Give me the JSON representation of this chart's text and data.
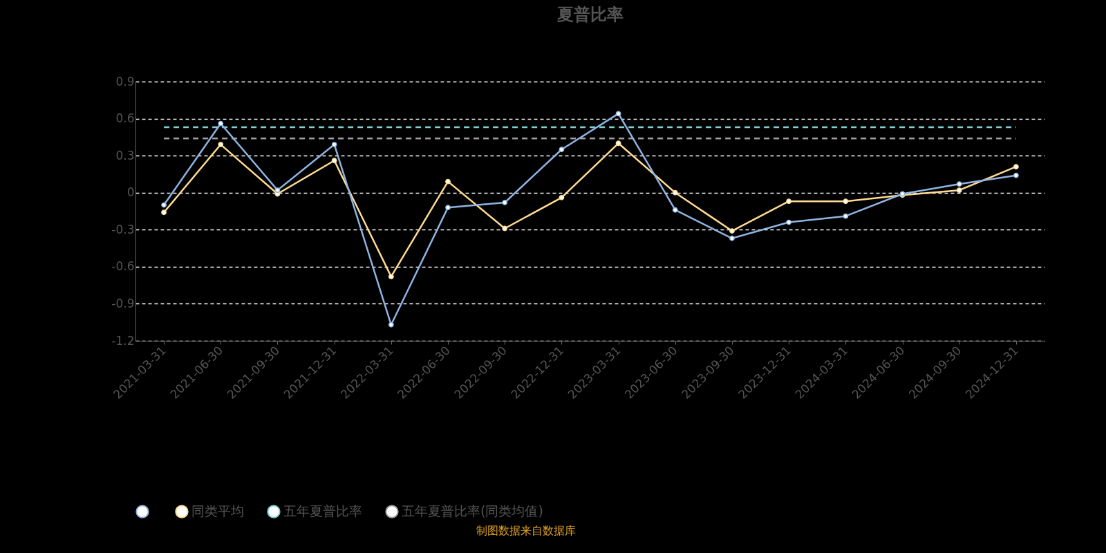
{
  "chart_data": {
    "type": "line",
    "title": "夏普比率",
    "categories": [
      "2021-03-31",
      "2021-06-30",
      "2021-09-30",
      "2021-12-31",
      "2022-03-31",
      "2022-06-30",
      "2022-09-30",
      "2022-12-31",
      "2023-03-31",
      "2023-06-30",
      "2023-09-30",
      "2023-12-31",
      "2024-03-31",
      "2024-06-30",
      "2024-09-30",
      "2024-12-31"
    ],
    "series": [
      {
        "color": "#8eb4e3",
        "values": [
          -0.1,
          0.56,
          0.02,
          0.39,
          -1.07,
          -0.12,
          -0.08,
          0.35,
          0.64,
          -0.14,
          -0.37,
          -0.24,
          -0.19,
          -0.01,
          0.07,
          0.14
        ]
      },
      {
        "name": "同类平均",
        "color": "#ffdb92",
        "values": [
          -0.16,
          0.39,
          -0.01,
          0.26,
          -0.68,
          0.09,
          -0.29,
          -0.04,
          0.4,
          0,
          -0.31,
          -0.07,
          -0.07,
          -0.02,
          0.02,
          0.21
        ]
      },
      {
        "name": "五年夏普比率",
        "color": "#7fd0d0",
        "marker": "none",
        "line_style": "dashed",
        "values": [
          0.53,
          0.53,
          0.53,
          0.53,
          0.53,
          0.53,
          0.53,
          0.53,
          0.53,
          0.53,
          0.53,
          0.53,
          0.53,
          0.53,
          0.53,
          0.53
        ]
      },
      {
        "name": "五年夏普比率(同类均值)",
        "color": "#a0a0a0",
        "marker": "none",
        "line_style": "dashed",
        "values": [
          0.44,
          0.44,
          0.44,
          0.44,
          0.44,
          0.44,
          0.44,
          0.44,
          0.44,
          0.44,
          0.44,
          0.44,
          0.44,
          0.44,
          0.44,
          0.44
        ]
      }
    ],
    "ylim": [
      -1.2,
      0.9
    ],
    "yticks": [
      -1.2,
      -0.9,
      -0.6,
      -0.3,
      0,
      0.3,
      0.6,
      0.9
    ],
    "grid": "y",
    "legend": "bottom",
    "marker": "circle",
    "line_style": "solid",
    "annotations": [
      "制图数据来自数据库"
    ]
  }
}
